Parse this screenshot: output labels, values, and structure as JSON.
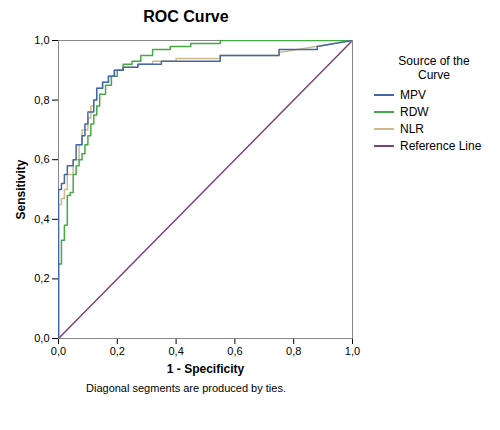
{
  "chart_data": {
    "type": "line",
    "title": "ROC Curve",
    "xlabel": "1 - Specificity",
    "ylabel": "Sensitivity",
    "footnote": "Diagonal segments are produced by ties.",
    "legend_title": "Source of the\nCurve",
    "legend": "right",
    "grid": false,
    "xlim": [
      0.0,
      1.0
    ],
    "ylim": [
      0.0,
      1.0
    ],
    "xticks": [
      {
        "value": 0.0,
        "label": "0,0"
      },
      {
        "value": 0.2,
        "label": "0,2"
      },
      {
        "value": 0.4,
        "label": "0,4"
      },
      {
        "value": 0.6,
        "label": "0,6"
      },
      {
        "value": 0.8,
        "label": "0,8"
      },
      {
        "value": 1.0,
        "label": "1,0"
      }
    ],
    "yticks": [
      {
        "value": 0.0,
        "label": "0,0"
      },
      {
        "value": 0.2,
        "label": "0,2"
      },
      {
        "value": 0.4,
        "label": "0,4"
      },
      {
        "value": 0.6,
        "label": "0,6"
      },
      {
        "value": 0.8,
        "label": "0,8"
      },
      {
        "value": 1.0,
        "label": "1,0"
      }
    ],
    "series": [
      {
        "name": "MPV",
        "color": "#4466aa",
        "x": [
          0.0,
          0.0,
          0.01,
          0.01,
          0.02,
          0.02,
          0.03,
          0.03,
          0.05,
          0.05,
          0.06,
          0.06,
          0.08,
          0.08,
          0.09,
          0.09,
          0.1,
          0.1,
          0.12,
          0.12,
          0.13,
          0.13,
          0.15,
          0.15,
          0.17,
          0.17,
          0.19,
          0.19,
          0.22,
          0.22,
          0.27,
          0.27,
          0.35,
          0.35,
          0.55,
          0.55,
          0.75,
          0.75,
          0.88,
          0.88,
          1.0
        ],
        "values": [
          0.0,
          0.5,
          0.5,
          0.52,
          0.52,
          0.55,
          0.55,
          0.58,
          0.58,
          0.6,
          0.6,
          0.65,
          0.65,
          0.68,
          0.68,
          0.72,
          0.72,
          0.76,
          0.76,
          0.8,
          0.8,
          0.84,
          0.84,
          0.86,
          0.86,
          0.88,
          0.88,
          0.9,
          0.9,
          0.91,
          0.91,
          0.92,
          0.92,
          0.93,
          0.93,
          0.95,
          0.95,
          0.97,
          0.97,
          0.98,
          1.0
        ]
      },
      {
        "name": "RDW",
        "color": "#44aa44",
        "x": [
          0.0,
          0.0,
          0.01,
          0.01,
          0.02,
          0.02,
          0.03,
          0.03,
          0.04,
          0.04,
          0.05,
          0.05,
          0.06,
          0.06,
          0.07,
          0.07,
          0.08,
          0.08,
          0.09,
          0.09,
          0.1,
          0.1,
          0.11,
          0.11,
          0.12,
          0.12,
          0.13,
          0.13,
          0.14,
          0.14,
          0.16,
          0.16,
          0.18,
          0.18,
          0.2,
          0.2,
          0.22,
          0.22,
          0.25,
          0.25,
          0.28,
          0.28,
          0.32,
          0.32,
          0.38,
          0.38,
          0.45,
          0.45,
          0.55,
          0.55,
          1.0
        ],
        "values": [
          0.0,
          0.25,
          0.25,
          0.33,
          0.33,
          0.38,
          0.38,
          0.48,
          0.48,
          0.49,
          0.49,
          0.55,
          0.55,
          0.58,
          0.58,
          0.6,
          0.6,
          0.62,
          0.62,
          0.65,
          0.65,
          0.68,
          0.68,
          0.72,
          0.72,
          0.75,
          0.75,
          0.78,
          0.78,
          0.82,
          0.82,
          0.85,
          0.85,
          0.88,
          0.88,
          0.9,
          0.9,
          0.92,
          0.92,
          0.93,
          0.93,
          0.95,
          0.95,
          0.97,
          0.97,
          0.98,
          0.98,
          0.99,
          0.99,
          1.0,
          1.0
        ]
      },
      {
        "name": "NLR",
        "color": "#ccbb88",
        "x": [
          0.0,
          0.0,
          0.01,
          0.01,
          0.02,
          0.02,
          0.03,
          0.03,
          0.05,
          0.05,
          0.07,
          0.07,
          0.08,
          0.08,
          0.1,
          0.1,
          0.11,
          0.11,
          0.12,
          0.12,
          0.13,
          0.13,
          0.15,
          0.15,
          0.17,
          0.17,
          0.19,
          0.19,
          0.22,
          0.22,
          0.27,
          0.27,
          0.32,
          0.32,
          0.4,
          0.4,
          0.55,
          0.55,
          0.75,
          0.75,
          1.0
        ],
        "values": [
          0.0,
          0.45,
          0.45,
          0.47,
          0.47,
          0.5,
          0.5,
          0.55,
          0.55,
          0.6,
          0.6,
          0.65,
          0.65,
          0.7,
          0.7,
          0.74,
          0.74,
          0.78,
          0.78,
          0.8,
          0.8,
          0.84,
          0.84,
          0.86,
          0.86,
          0.88,
          0.88,
          0.9,
          0.9,
          0.91,
          0.91,
          0.92,
          0.92,
          0.93,
          0.93,
          0.94,
          0.94,
          0.95,
          0.95,
          0.96,
          1.0
        ]
      },
      {
        "name": "Reference Line",
        "color": "#7b3f80",
        "x": [
          0,
          1
        ],
        "values": [
          0,
          1
        ]
      }
    ]
  }
}
